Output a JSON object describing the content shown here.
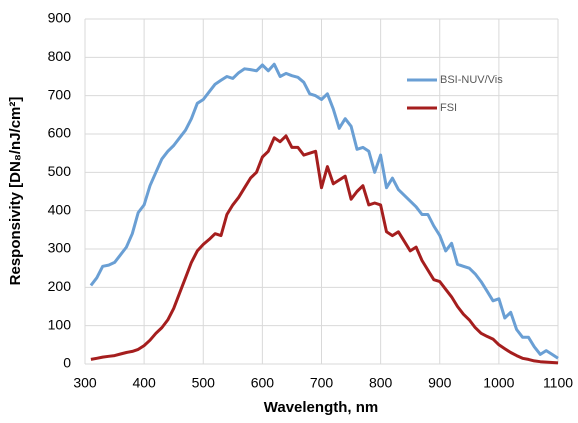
{
  "chart_data": {
    "type": "line",
    "xlabel": "Wavelength, nm",
    "ylabel": "Responsivity [DN₈/nJ/cm²]",
    "xlim": [
      300,
      1100
    ],
    "xticks": [
      300,
      400,
      500,
      600,
      700,
      800,
      900,
      1000,
      1100
    ],
    "ylim": [
      0,
      900
    ],
    "yticks": [
      0,
      100,
      200,
      300,
      400,
      500,
      600,
      700,
      800,
      900
    ],
    "grid": true,
    "legend": "upper right",
    "x": [
      310,
      320,
      330,
      340,
      350,
      360,
      370,
      380,
      390,
      400,
      410,
      420,
      430,
      440,
      450,
      460,
      470,
      480,
      490,
      500,
      510,
      520,
      530,
      540,
      550,
      560,
      570,
      580,
      590,
      600,
      610,
      620,
      630,
      640,
      650,
      660,
      670,
      680,
      690,
      700,
      710,
      720,
      730,
      740,
      750,
      760,
      770,
      780,
      790,
      800,
      810,
      820,
      830,
      840,
      850,
      860,
      870,
      880,
      890,
      900,
      910,
      920,
      930,
      940,
      950,
      960,
      970,
      980,
      990,
      1000,
      1010,
      1020,
      1030,
      1040,
      1050,
      1060,
      1070,
      1080,
      1090,
      1100
    ],
    "series": [
      {
        "name": "BSI-NUV/Vis",
        "color": "#6a9fd4",
        "values": [
          205,
          225,
          255,
          258,
          265,
          285,
          305,
          340,
          395,
          415,
          465,
          500,
          535,
          555,
          570,
          590,
          610,
          640,
          680,
          690,
          710,
          730,
          740,
          750,
          745,
          760,
          770,
          768,
          765,
          780,
          765,
          782,
          750,
          758,
          752,
          748,
          735,
          705,
          700,
          690,
          705,
          665,
          615,
          640,
          620,
          560,
          565,
          555,
          500,
          545,
          460,
          485,
          455,
          440,
          425,
          410,
          390,
          390,
          360,
          335,
          295,
          315,
          260,
          255,
          250,
          235,
          215,
          190,
          165,
          170,
          120,
          135,
          90,
          70,
          70,
          45,
          25,
          35,
          25,
          15
        ]
      },
      {
        "name": "FSI",
        "color": "#a51e1e",
        "values": [
          12,
          15,
          18,
          20,
          22,
          26,
          30,
          33,
          38,
          48,
          62,
          80,
          95,
          115,
          145,
          185,
          225,
          265,
          295,
          312,
          325,
          340,
          335,
          390,
          415,
          435,
          460,
          485,
          500,
          540,
          555,
          590,
          580,
          595,
          565,
          565,
          545,
          550,
          555,
          460,
          515,
          470,
          480,
          490,
          430,
          450,
          465,
          415,
          420,
          415,
          345,
          335,
          345,
          320,
          295,
          305,
          270,
          245,
          220,
          215,
          195,
          175,
          150,
          130,
          115,
          95,
          80,
          72,
          65,
          50,
          40,
          30,
          22,
          15,
          12,
          8,
          6,
          5,
          4,
          3
        ]
      }
    ]
  }
}
